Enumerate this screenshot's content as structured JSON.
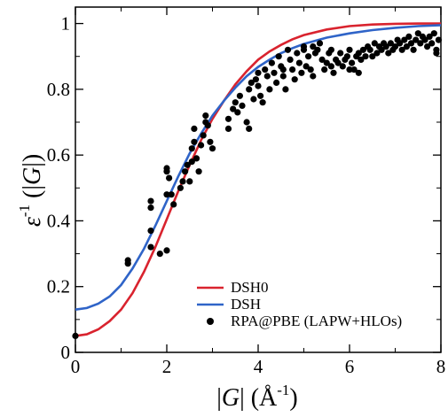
{
  "chart_data": {
    "type": "scatter",
    "xlabel": "|G| (Å⁻¹)",
    "ylabel": "ε⁻¹ (|G|)",
    "xlim": [
      0,
      8
    ],
    "ylim": [
      0,
      1.05
    ],
    "xticks": [
      0,
      2,
      4,
      6,
      8
    ],
    "yticks": [
      0,
      0.2,
      0.4,
      0.6,
      0.8,
      1
    ],
    "xtick_labels": [
      "0",
      "2",
      "4",
      "6",
      "8"
    ],
    "ytick_labels": [
      "0",
      "0.2",
      "0.4",
      "0.6",
      "0.8",
      "1"
    ],
    "legend_position": "bottom-right",
    "series": [
      {
        "name": "DSH0",
        "kind": "line",
        "color": "#d9232e",
        "x": [
          0,
          0.25,
          0.5,
          0.75,
          1,
          1.25,
          1.5,
          1.75,
          2,
          2.25,
          2.5,
          2.75,
          3,
          3.25,
          3.5,
          3.75,
          4,
          4.25,
          4.5,
          4.75,
          5,
          5.5,
          6,
          6.5,
          7,
          7.5,
          8
        ],
        "y": [
          0.05,
          0.055,
          0.07,
          0.095,
          0.13,
          0.18,
          0.245,
          0.32,
          0.405,
          0.49,
          0.57,
          0.645,
          0.71,
          0.765,
          0.815,
          0.855,
          0.89,
          0.915,
          0.935,
          0.952,
          0.965,
          0.982,
          0.992,
          0.997,
          0.999,
          1.0,
          1.0
        ]
      },
      {
        "name": "DSH",
        "kind": "line",
        "color": "#2f64c8",
        "x": [
          0,
          0.25,
          0.5,
          0.75,
          1,
          1.25,
          1.5,
          1.75,
          2,
          2.25,
          2.5,
          2.75,
          3,
          3.25,
          3.5,
          3.75,
          4,
          4.25,
          4.5,
          4.75,
          5,
          5.5,
          6,
          6.5,
          7,
          7.5,
          8
        ],
        "y": [
          0.13,
          0.135,
          0.148,
          0.17,
          0.205,
          0.255,
          0.315,
          0.385,
          0.46,
          0.535,
          0.605,
          0.665,
          0.72,
          0.765,
          0.805,
          0.84,
          0.868,
          0.89,
          0.91,
          0.925,
          0.938,
          0.957,
          0.97,
          0.98,
          0.987,
          0.992,
          0.995
        ]
      },
      {
        "name": "RPA@PBE (LAPW+HLOs)",
        "kind": "scatter",
        "color": "#000000",
        "points": [
          [
            0,
            0.05
          ],
          [
            1.15,
            0.27
          ],
          [
            1.15,
            0.28
          ],
          [
            1.65,
            0.32
          ],
          [
            1.65,
            0.37
          ],
          [
            1.65,
            0.44
          ],
          [
            1.65,
            0.46
          ],
          [
            1.85,
            0.3
          ],
          [
            2.0,
            0.31
          ],
          [
            2.0,
            0.48
          ],
          [
            2.0,
            0.55
          ],
          [
            2.0,
            0.56
          ],
          [
            2.05,
            0.53
          ],
          [
            2.1,
            0.48
          ],
          [
            2.15,
            0.45
          ],
          [
            2.3,
            0.5
          ],
          [
            2.35,
            0.52
          ],
          [
            2.4,
            0.55
          ],
          [
            2.45,
            0.57
          ],
          [
            2.5,
            0.52
          ],
          [
            2.55,
            0.58
          ],
          [
            2.55,
            0.62
          ],
          [
            2.6,
            0.64
          ],
          [
            2.6,
            0.68
          ],
          [
            2.65,
            0.59
          ],
          [
            2.7,
            0.55
          ],
          [
            2.75,
            0.63
          ],
          [
            2.8,
            0.66
          ],
          [
            2.85,
            0.7
          ],
          [
            2.85,
            0.72
          ],
          [
            2.9,
            0.69
          ],
          [
            2.95,
            0.64
          ],
          [
            3.0,
            0.62
          ],
          [
            3.35,
            0.68
          ],
          [
            3.35,
            0.71
          ],
          [
            3.45,
            0.74
          ],
          [
            3.5,
            0.76
          ],
          [
            3.55,
            0.73
          ],
          [
            3.6,
            0.78
          ],
          [
            3.65,
            0.75
          ],
          [
            3.75,
            0.7
          ],
          [
            3.8,
            0.68
          ],
          [
            3.8,
            0.8
          ],
          [
            3.85,
            0.82
          ],
          [
            3.9,
            0.77
          ],
          [
            3.95,
            0.83
          ],
          [
            4.0,
            0.85
          ],
          [
            4.0,
            0.81
          ],
          [
            4.05,
            0.78
          ],
          [
            4.1,
            0.76
          ],
          [
            4.15,
            0.86
          ],
          [
            4.2,
            0.84
          ],
          [
            4.3,
            0.88
          ],
          [
            4.35,
            0.85
          ],
          [
            4.4,
            0.82
          ],
          [
            4.45,
            0.9
          ],
          [
            4.5,
            0.87
          ],
          [
            4.55,
            0.86
          ],
          [
            4.6,
            0.8
          ],
          [
            4.7,
            0.89
          ],
          [
            4.75,
            0.86
          ],
          [
            4.8,
            0.83
          ],
          [
            4.85,
            0.91
          ],
          [
            4.9,
            0.88
          ],
          [
            4.95,
            0.85
          ],
          [
            5.0,
            0.92
          ],
          [
            5.0,
            0.93
          ],
          [
            5.05,
            0.87
          ],
          [
            5.1,
            0.9
          ],
          [
            5.15,
            0.86
          ],
          [
            5.2,
            0.84
          ],
          [
            5.25,
            0.91
          ],
          [
            5.3,
            0.92
          ],
          [
            5.35,
            0.94
          ],
          [
            5.4,
            0.89
          ],
          [
            5.45,
            0.86
          ],
          [
            5.5,
            0.88
          ],
          [
            5.55,
            0.91
          ],
          [
            5.6,
            0.87
          ],
          [
            5.65,
            0.85
          ],
          [
            5.7,
            0.89
          ],
          [
            5.75,
            0.88
          ],
          [
            5.8,
            0.91
          ],
          [
            5.85,
            0.87
          ],
          [
            5.9,
            0.89
          ],
          [
            5.95,
            0.9
          ],
          [
            6.0,
            0.92
          ],
          [
            6.05,
            0.88
          ],
          [
            6.1,
            0.86
          ],
          [
            6.15,
            0.9
          ],
          [
            6.2,
            0.91
          ],
          [
            6.25,
            0.89
          ],
          [
            6.3,
            0.92
          ],
          [
            6.35,
            0.9
          ],
          [
            6.4,
            0.93
          ],
          [
            6.45,
            0.92
          ],
          [
            6.5,
            0.9
          ],
          [
            6.55,
            0.94
          ],
          [
            6.6,
            0.91
          ],
          [
            6.65,
            0.93
          ],
          [
            6.7,
            0.92
          ],
          [
            6.75,
            0.94
          ],
          [
            6.8,
            0.93
          ],
          [
            6.85,
            0.91
          ],
          [
            6.9,
            0.94
          ],
          [
            6.95,
            0.92
          ],
          [
            7.0,
            0.93
          ],
          [
            7.05,
            0.95
          ],
          [
            7.1,
            0.94
          ],
          [
            7.15,
            0.92
          ],
          [
            7.2,
            0.95
          ],
          [
            7.25,
            0.93
          ],
          [
            7.3,
            0.96
          ],
          [
            7.35,
            0.94
          ],
          [
            7.4,
            0.92
          ],
          [
            7.45,
            0.95
          ],
          [
            7.5,
            0.97
          ],
          [
            7.55,
            0.94
          ],
          [
            7.6,
            0.96
          ],
          [
            7.65,
            0.95
          ],
          [
            7.7,
            0.93
          ],
          [
            7.75,
            0.96
          ],
          [
            7.8,
            0.94
          ],
          [
            7.85,
            0.97
          ],
          [
            7.9,
            0.92
          ],
          [
            7.95,
            0.95
          ],
          [
            6.0,
            0.86
          ],
          [
            6.2,
            0.85
          ],
          [
            7.9,
            0.91
          ],
          [
            5.2,
            0.93
          ],
          [
            5.6,
            0.92
          ],
          [
            4.65,
            0.92
          ],
          [
            4.25,
            0.8
          ],
          [
            4.55,
            0.84
          ]
        ]
      }
    ]
  }
}
